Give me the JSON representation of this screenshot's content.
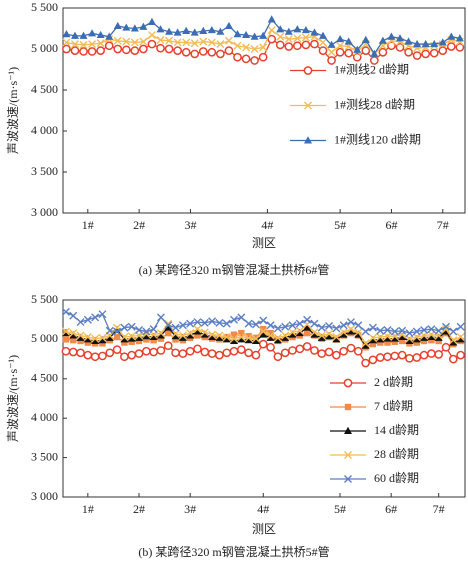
{
  "chart_data": [
    {
      "type": "line",
      "ylabel": "声波波速/(m·s⁻¹)",
      "xlabel": "测区",
      "caption": "(a) 某跨径320 m钢管混凝土拱桥6#管",
      "legend": "center right",
      "xlim": [
        0.6,
        47.6
      ],
      "xticks": [
        {
          "value": 3.5,
          "label": "1#"
        },
        {
          "value": 9.5,
          "label": "2#"
        },
        {
          "value": 15.5,
          "label": "3#"
        },
        {
          "value": 24.5,
          "label": "4#"
        },
        {
          "value": 33,
          "label": "5#"
        },
        {
          "value": 39,
          "label": "6#"
        },
        {
          "value": 45,
          "label": "7#"
        }
      ],
      "ylim": [
        3000,
        5500
      ],
      "yticks": [
        {
          "value": 3000,
          "label": "3 000"
        },
        {
          "value": 3500,
          "label": "3 500"
        },
        {
          "value": 4000,
          "label": "4 000"
        },
        {
          "value": 4500,
          "label": "4 500"
        },
        {
          "value": 5000,
          "label": "5 000"
        },
        {
          "value": 5500,
          "label": "5 500"
        }
      ],
      "x": [
        1,
        2,
        3,
        4,
        5,
        6,
        7,
        8,
        9,
        10,
        11,
        12,
        13,
        14,
        15,
        16,
        17,
        18,
        19,
        20,
        21,
        22,
        23,
        24,
        25,
        26,
        27,
        28,
        29,
        30,
        31,
        32,
        33,
        34,
        35,
        36,
        37,
        38,
        39,
        40,
        41,
        42,
        43,
        44,
        45,
        46,
        47
      ],
      "series": [
        {
          "name": "1#测线2 d龄期",
          "color": "#e5412d",
          "marker": "circle",
          "values": [
            5000,
            4980,
            4970,
            4970,
            4980,
            5040,
            5000,
            4990,
            4980,
            5000,
            5060,
            5010,
            5000,
            4980,
            4960,
            4940,
            4970,
            4960,
            4940,
            4980,
            4900,
            4880,
            4860,
            4900,
            5120,
            5050,
            5030,
            5040,
            5050,
            5060,
            4980,
            4860,
            4960,
            4950,
            4900,
            4980,
            4860,
            4960,
            5040,
            5020,
            4960,
            4920,
            4940,
            4950,
            4980,
            5030,
            5020
          ]
        },
        {
          "name": "1#测线28 d龄期",
          "color": "#f3bb55",
          "marker": "x",
          "values": [
            5080,
            5060,
            5050,
            5060,
            5070,
            5120,
            5100,
            5090,
            5080,
            5090,
            5170,
            5110,
            5100,
            5080,
            5080,
            5070,
            5090,
            5080,
            5060,
            5100,
            5040,
            5020,
            5000,
            5020,
            5230,
            5150,
            5120,
            5130,
            5140,
            5150,
            5080,
            4960,
            5040,
            5030,
            4970,
            5060,
            4940,
            5040,
            5100,
            5090,
            5040,
            5010,
            5020,
            5040,
            5060,
            5110,
            5090
          ]
        },
        {
          "name": "1#测线120 d龄期",
          "color": "#3b6db5",
          "marker": "triangle",
          "values": [
            5180,
            5160,
            5160,
            5190,
            5170,
            5150,
            5280,
            5260,
            5250,
            5270,
            5330,
            5240,
            5210,
            5200,
            5220,
            5200,
            5220,
            5230,
            5210,
            5280,
            5180,
            5170,
            5150,
            5160,
            5360,
            5240,
            5210,
            5240,
            5230,
            5200,
            5160,
            5050,
            5120,
            5090,
            4990,
            5110,
            4940,
            5100,
            5150,
            5130,
            5090,
            5060,
            5060,
            5060,
            5080,
            5150,
            5130
          ]
        }
      ]
    },
    {
      "type": "line",
      "ylabel": "声波波速/(m·s⁻¹)",
      "xlabel": "测区",
      "caption": "(b) 某跨径320 m钢管混凝土拱桥5#管",
      "legend": "lower right",
      "xlim": [
        0.6,
        55.6
      ],
      "xticks": [
        {
          "value": 4,
          "label": "1#"
        },
        {
          "value": 11,
          "label": "2#"
        },
        {
          "value": 18,
          "label": "3#"
        },
        {
          "value": 28,
          "label": "4#"
        },
        {
          "value": 38.5,
          "label": "5#"
        },
        {
          "value": 45.5,
          "label": "6#"
        },
        {
          "value": 52,
          "label": "7#"
        }
      ],
      "ylim": [
        3000,
        5500
      ],
      "yticks": [
        {
          "value": 3000,
          "label": "3 000"
        },
        {
          "value": 3500,
          "label": "3 500"
        },
        {
          "value": 4000,
          "label": "4 000"
        },
        {
          "value": 4500,
          "label": "4 500"
        },
        {
          "value": 5000,
          "label": "5 000"
        },
        {
          "value": 5500,
          "label": "5 500"
        }
      ],
      "x": [
        1,
        2,
        3,
        4,
        5,
        6,
        7,
        8,
        9,
        10,
        11,
        12,
        13,
        14,
        15,
        16,
        17,
        18,
        19,
        20,
        21,
        22,
        23,
        24,
        25,
        26,
        27,
        28,
        29,
        30,
        31,
        32,
        33,
        34,
        35,
        36,
        37,
        38,
        39,
        40,
        41,
        42,
        43,
        44,
        45,
        46,
        47,
        48,
        49,
        50,
        51,
        52,
        53,
        54,
        55
      ],
      "series": [
        {
          "name": "2 d龄期",
          "color": "#e5412d",
          "marker": "circle",
          "values": [
            4850,
            4840,
            4830,
            4800,
            4780,
            4790,
            4830,
            4870,
            4780,
            4800,
            4820,
            4850,
            4840,
            4860,
            4920,
            4830,
            4820,
            4850,
            4880,
            4840,
            4820,
            4800,
            4830,
            4850,
            4870,
            4830,
            4800,
            4940,
            4900,
            4780,
            4830,
            4860,
            4880,
            4910,
            4860,
            4820,
            4840,
            4800,
            4850,
            4890,
            4850,
            4700,
            4740,
            4770,
            4780,
            4790,
            4800,
            4760,
            4770,
            4800,
            4820,
            4810,
            4900,
            4750,
            4800
          ]
        },
        {
          "name": "7 d龄期",
          "color": "#ef8a4a",
          "marker": "square",
          "values": [
            5000,
            4990,
            4980,
            4960,
            4950,
            4950,
            4990,
            5030,
            4960,
            4970,
            4980,
            5000,
            4990,
            5010,
            5080,
            5000,
            4990,
            5020,
            5050,
            5030,
            5010,
            5000,
            5030,
            5060,
            5080,
            5040,
            5020,
            5130,
            5080,
            4980,
            5000,
            5030,
            5050,
            5080,
            5050,
            5010,
            5030,
            5000,
            5050,
            5080,
            5050,
            4900,
            4940,
            4960,
            4960,
            4970,
            4980,
            4950,
            4960,
            4980,
            4990,
            4980,
            5080,
            4940,
            4980
          ]
        },
        {
          "name": "14 d龄期",
          "color": "#111111",
          "marker": "triangle",
          "values": [
            5080,
            5050,
            5020,
            5000,
            4980,
            4990,
            5020,
            5120,
            5000,
            5010,
            5020,
            5040,
            5030,
            5050,
            5150,
            5040,
            5020,
            5050,
            5100,
            5060,
            5030,
            5020,
            5000,
            4980,
            5000,
            4990,
            4980,
            5060,
            5020,
            4990,
            5020,
            5060,
            5080,
            5150,
            5060,
            5020,
            5040,
            5000,
            5060,
            5100,
            5060,
            4920,
            4990,
            5000,
            5010,
            5010,
            5030,
            4980,
            5000,
            5020,
            5030,
            5020,
            5100,
            4960,
            5000
          ]
        },
        {
          "name": "28 d龄期",
          "color": "#f3bb55",
          "marker": "x",
          "values": [
            5100,
            5080,
            5050,
            5030,
            5010,
            5020,
            5050,
            5150,
            5030,
            5040,
            5050,
            5070,
            5060,
            5080,
            5200,
            5070,
            5050,
            5080,
            5130,
            5090,
            5060,
            5050,
            5030,
            5010,
            5030,
            5020,
            5010,
            5100,
            5050,
            5020,
            5050,
            5090,
            5110,
            5190,
            5090,
            5050,
            5070,
            5030,
            5090,
            5130,
            5090,
            4950,
            5020,
            5030,
            5040,
            5040,
            5060,
            5010,
            5030,
            5050,
            5060,
            5050,
            5130,
            4990,
            5030
          ]
        },
        {
          "name": "60 d龄期",
          "color": "#5b7fc4",
          "marker": "x",
          "values": [
            5350,
            5300,
            5220,
            5250,
            5280,
            5320,
            5110,
            5100,
            5150,
            5160,
            5120,
            5100,
            5130,
            5280,
            5180,
            5150,
            5180,
            5200,
            5220,
            5210,
            5230,
            5210,
            5200,
            5250,
            5280,
            5200,
            5190,
            5240,
            5180,
            5140,
            5160,
            5180,
            5200,
            5250,
            5200,
            5150,
            5170,
            5140,
            5180,
            5220,
            5180,
            5100,
            5150,
            5110,
            5120,
            5100,
            5110,
            5080,
            5100,
            5120,
            5130,
            5110,
            5160,
            5100,
            5160
          ]
        }
      ]
    }
  ]
}
